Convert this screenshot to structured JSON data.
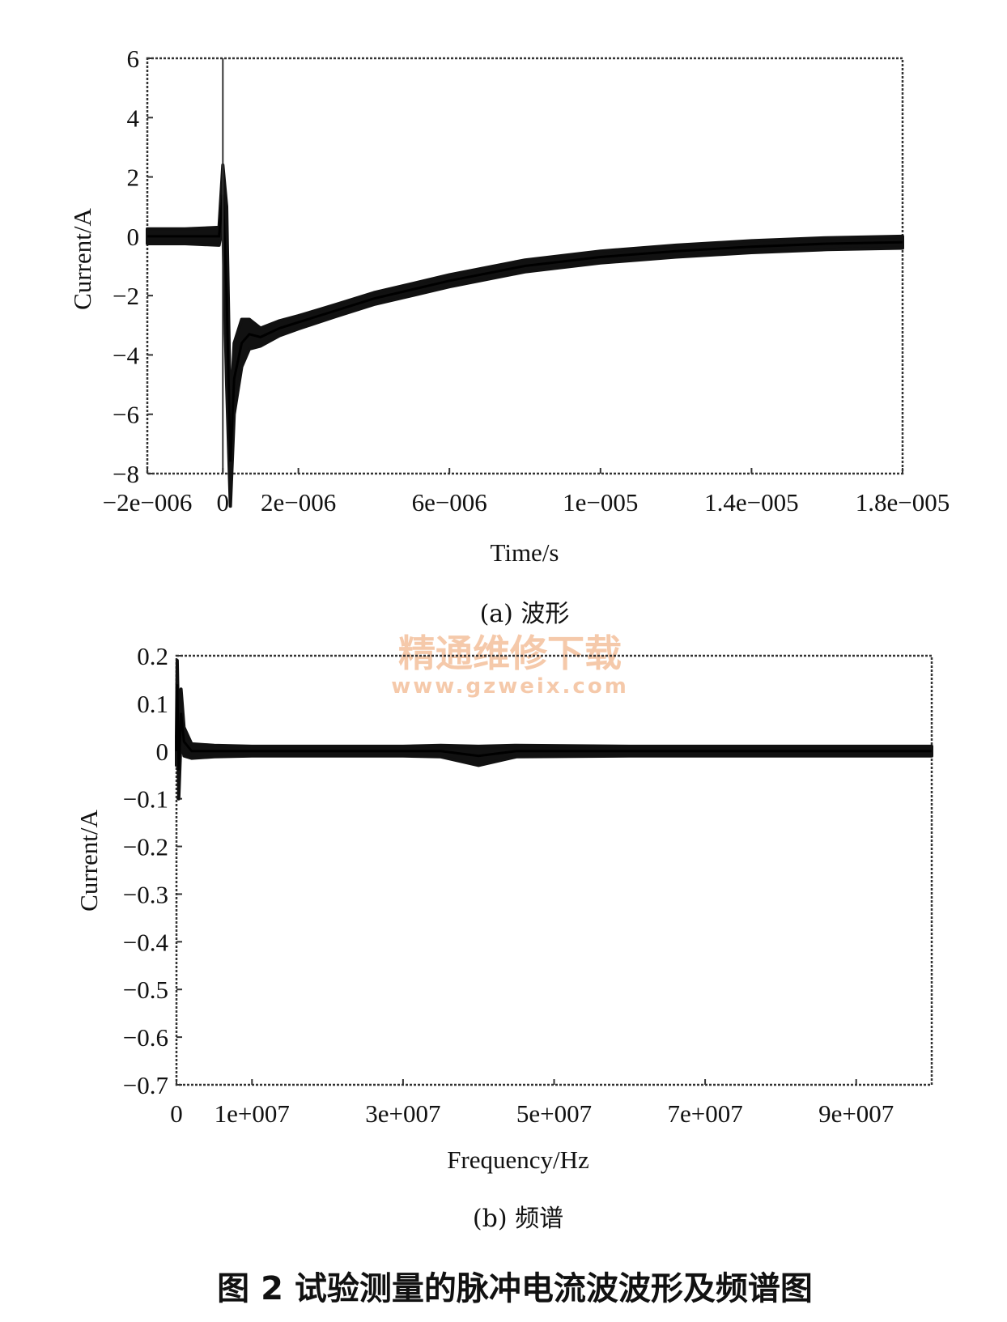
{
  "chart_data": [
    {
      "type": "line",
      "title": "",
      "caption": "(a) 波形",
      "xlabel": "Time/s",
      "ylabel": "Current/A",
      "xlim": [
        -2e-06,
        1.8e-05
      ],
      "ylim": [
        -8,
        6
      ],
      "x_ticks": [
        {
          "value": -2e-06,
          "label": "−2e−006"
        },
        {
          "value": 0,
          "label": "0"
        },
        {
          "value": 2e-06,
          "label": "2e−006"
        },
        {
          "value": 6e-06,
          "label": "6e−006"
        },
        {
          "value": 1e-05,
          "label": "1e−005"
        },
        {
          "value": 1.4e-05,
          "label": "1.4e−005"
        },
        {
          "value": 1.8e-05,
          "label": "1.8e−005"
        }
      ],
      "y_ticks": [
        {
          "value": 6,
          "label": "6"
        },
        {
          "value": 4,
          "label": "4"
        },
        {
          "value": 2,
          "label": "2"
        },
        {
          "value": 0,
          "label": "0"
        },
        {
          "value": -2,
          "label": "−2"
        },
        {
          "value": -4,
          "label": "−4"
        },
        {
          "value": -6,
          "label": "−6"
        },
        {
          "value": -8,
          "label": "−8"
        }
      ],
      "grid": false,
      "series": [
        {
          "x": [
            -2e-06,
            -1e-06,
            -1e-07,
            0,
            1e-07,
            2e-07,
            3e-07,
            5e-07,
            7e-07,
            1e-06,
            1.5e-06,
            2e-06,
            3e-06,
            4e-06,
            6e-06,
            8e-06,
            1e-05,
            1.2e-05,
            1.4e-05,
            1.6e-05,
            1.8e-05
          ],
          "y": [
            0.0,
            0.0,
            0.0,
            1.4,
            -2.0,
            -7.6,
            -4.8,
            -3.6,
            -3.3,
            -3.4,
            -3.1,
            -2.9,
            -2.5,
            -2.1,
            -1.5,
            -1.0,
            -0.7,
            -0.5,
            -0.35,
            -0.25,
            -0.2
          ],
          "y_spread": [
            0.25,
            0.25,
            0.3,
            1.0,
            3.0,
            1.5,
            1.2,
            0.8,
            0.5,
            0.3,
            0.25,
            0.22,
            0.2,
            0.2,
            0.2,
            0.2,
            0.2,
            0.2,
            0.2,
            0.2,
            0.2
          ]
        }
      ]
    },
    {
      "type": "line",
      "title": "",
      "caption": "(b) 频谱",
      "xlabel": "Frequency/Hz",
      "ylabel": "Current/A",
      "xlim": [
        0,
        100000000.0
      ],
      "ylim": [
        -0.7,
        0.2
      ],
      "x_ticks": [
        {
          "value": 0,
          "label": "0"
        },
        {
          "value": 10000000.0,
          "label": "1e+007"
        },
        {
          "value": 30000000.0,
          "label": "3e+007"
        },
        {
          "value": 50000000.0,
          "label": "5e+007"
        },
        {
          "value": 70000000.0,
          "label": "7e+007"
        },
        {
          "value": 90000000.0,
          "label": "9e+007"
        }
      ],
      "y_ticks": [
        {
          "value": 0.2,
          "label": "0.2"
        },
        {
          "value": 0.1,
          "label": "0.1"
        },
        {
          "value": 0,
          "label": "0"
        },
        {
          "value": -0.1,
          "label": "−0.1"
        },
        {
          "value": -0.2,
          "label": "−0.2"
        },
        {
          "value": -0.3,
          "label": "−0.3"
        },
        {
          "value": -0.4,
          "label": "−0.4"
        },
        {
          "value": -0.5,
          "label": "−0.5"
        },
        {
          "value": -0.6,
          "label": "−0.6"
        },
        {
          "value": -0.7,
          "label": "−0.7"
        }
      ],
      "grid": false,
      "series": [
        {
          "x": [
            0,
            100000.0,
            300000.0,
            600000.0,
            1000000.0,
            2000000.0,
            5000000.0,
            10000000.0,
            20000000.0,
            30000000.0,
            35000000.0,
            40000000.0,
            45000000.0,
            60000000.0,
            80000000.0,
            100000000.0
          ],
          "y": [
            0.0,
            0.14,
            -0.04,
            0.08,
            0.02,
            0.0,
            0.0,
            0.0,
            0.0,
            0.0,
            0.0,
            -0.01,
            0.0,
            0.0,
            0.0,
            0.0
          ],
          "y_spread": [
            0.03,
            0.05,
            0.06,
            0.05,
            0.03,
            0.015,
            0.012,
            0.01,
            0.01,
            0.01,
            0.012,
            0.02,
            0.012,
            0.01,
            0.01,
            0.01
          ]
        }
      ]
    }
  ],
  "figure_title": "图 2 试验测量的脉冲电流波波形及频谱图",
  "watermark": {
    "line1": "精通维修下载",
    "line2": "www.gzweix.com"
  }
}
